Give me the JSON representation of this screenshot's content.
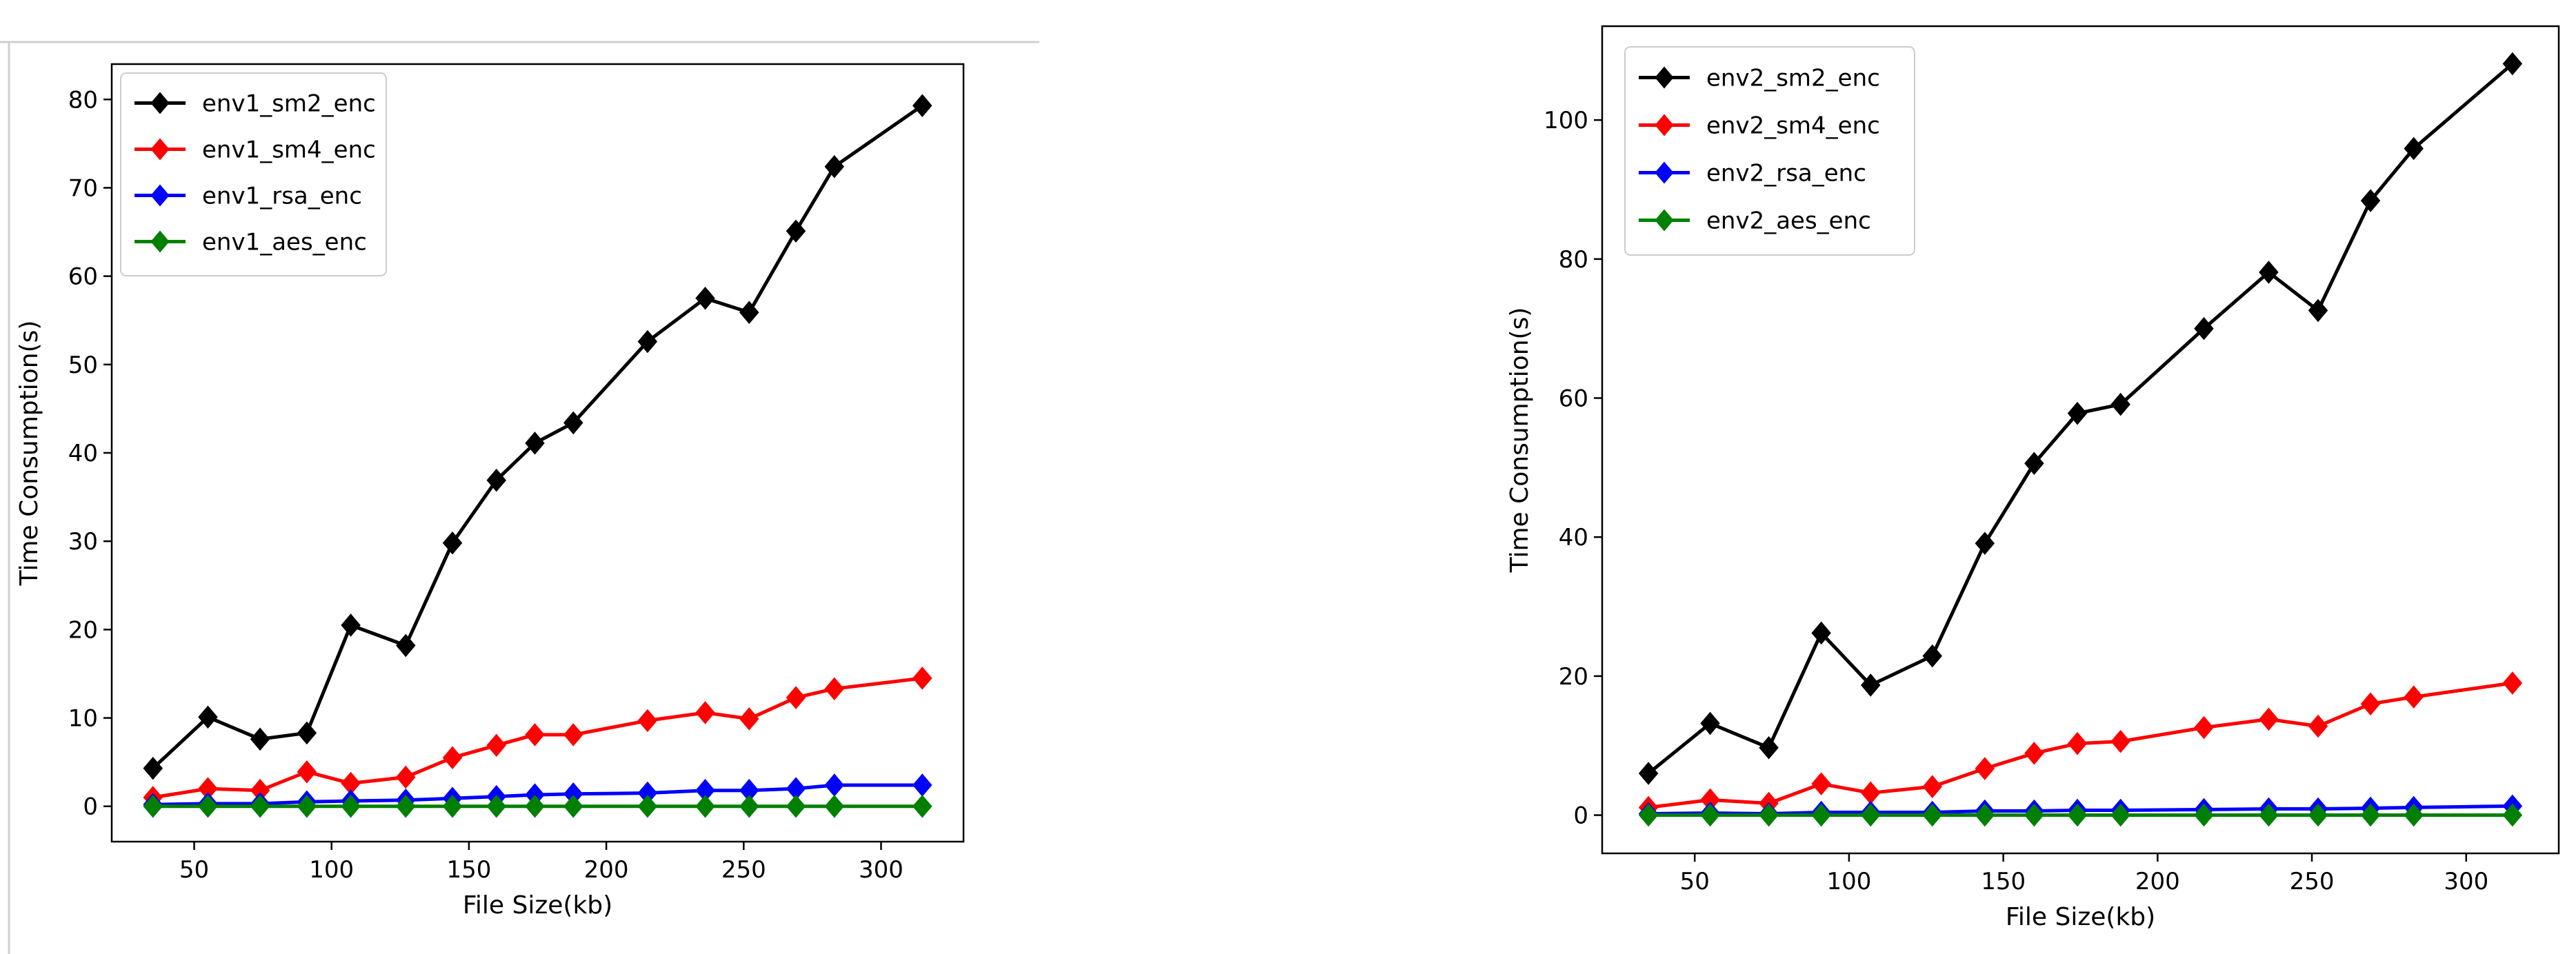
{
  "colors": {
    "background": "#ffffff",
    "axis": "#000000",
    "env_sm2": "#000000",
    "env_sm4": "#ff0000",
    "env_rsa": "#0000ff",
    "env_aes": "#008000",
    "frame_line": "#cfcfcf"
  },
  "chart_data": [
    {
      "type": "line",
      "marker": "diamond",
      "title": "",
      "xlabel": "File Size(kb)",
      "ylabel": "Time Consumption(s)",
      "xlim": [
        20,
        330
      ],
      "ylim": [
        -4,
        84
      ],
      "xticks": [
        50,
        100,
        150,
        200,
        250,
        300
      ],
      "yticks": [
        0,
        10,
        20,
        30,
        40,
        50,
        60,
        70,
        80
      ],
      "grid": false,
      "legend_position": "top-left",
      "x": [
        35,
        55,
        74,
        91,
        107,
        127,
        144,
        160,
        174,
        188,
        215,
        236,
        252,
        269,
        283,
        315
      ],
      "series": [
        {
          "name": "env1_sm2_enc",
          "color": "#000000",
          "values": [
            4.3,
            10.1,
            7.6,
            8.3,
            20.5,
            18.2,
            29.8,
            36.9,
            41.1,
            43.4,
            52.6,
            57.5,
            55.9,
            65.1,
            72.4,
            79.3
          ]
        },
        {
          "name": "env1_sm4_enc",
          "color": "#ff0000",
          "values": [
            1.0,
            2.0,
            1.8,
            3.9,
            2.6,
            3.3,
            5.5,
            6.9,
            8.1,
            8.1,
            9.7,
            10.6,
            9.9,
            12.3,
            13.3,
            14.5
          ]
        },
        {
          "name": "env1_rsa_enc",
          "color": "#0000ff",
          "values": [
            0.2,
            0.3,
            0.3,
            0.5,
            0.6,
            0.7,
            0.9,
            1.1,
            1.3,
            1.4,
            1.5,
            1.8,
            1.8,
            2.0,
            2.4,
            2.4
          ]
        },
        {
          "name": "env1_aes_enc",
          "color": "#008000",
          "values": [
            0.0,
            0.0,
            0.0,
            0.0,
            0.0,
            0.0,
            0.0,
            0.0,
            0.0,
            0.0,
            0.0,
            0.0,
            0.0,
            0.0,
            0.0,
            0.0
          ]
        }
      ]
    },
    {
      "type": "line",
      "marker": "diamond",
      "title": "",
      "xlabel": "File Size(kb)",
      "ylabel": "Time Consumption(s)",
      "xlim": [
        20,
        330
      ],
      "ylim": [
        -5.5,
        113.5
      ],
      "xticks": [
        50,
        100,
        150,
        200,
        250,
        300
      ],
      "yticks": [
        0,
        20,
        40,
        60,
        80,
        100
      ],
      "grid": false,
      "legend_position": "top-left",
      "x": [
        35,
        55,
        74,
        91,
        107,
        127,
        144,
        160,
        174,
        188,
        215,
        236,
        252,
        269,
        283,
        315
      ],
      "series": [
        {
          "name": "env2_sm2_enc",
          "color": "#000000",
          "values": [
            6.0,
            13.2,
            9.7,
            26.2,
            18.7,
            22.9,
            39.1,
            50.6,
            57.8,
            59.1,
            70.0,
            78.1,
            72.6,
            88.4,
            95.9,
            108.1
          ]
        },
        {
          "name": "env2_sm4_enc",
          "color": "#ff0000",
          "values": [
            1.1,
            2.2,
            1.7,
            4.5,
            3.2,
            4.1,
            6.7,
            8.9,
            10.3,
            10.6,
            12.6,
            13.8,
            12.8,
            16.0,
            17.0,
            19.0
          ]
        },
        {
          "name": "env2_rsa_enc",
          "color": "#0000ff",
          "values": [
            0.2,
            0.3,
            0.2,
            0.4,
            0.4,
            0.4,
            0.6,
            0.6,
            0.7,
            0.7,
            0.8,
            0.9,
            0.9,
            1.0,
            1.1,
            1.3
          ]
        },
        {
          "name": "env2_aes_enc",
          "color": "#008000",
          "values": [
            0.0,
            0.0,
            0.0,
            0.0,
            0.0,
            0.0,
            0.0,
            0.0,
            0.0,
            0.0,
            0.0,
            0.0,
            0.0,
            0.0,
            0.0,
            0.0
          ]
        }
      ]
    }
  ]
}
